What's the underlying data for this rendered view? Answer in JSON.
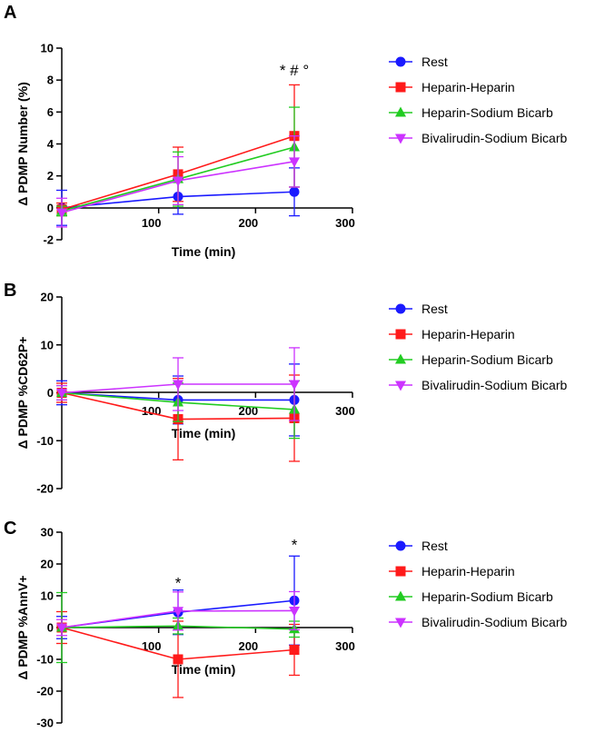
{
  "colors": {
    "rest": "#1a1aff",
    "heparin_heparin": "#ff1a1a",
    "heparin_sodium_bicarb": "#22cc22",
    "bivalirudin_sodium_bicarb": "#cc33ff"
  },
  "chart_data": [
    {
      "panel": "A",
      "type": "line",
      "xlabel": "Time (min)",
      "ylabel": "Δ PDMP Number (%)",
      "xlim": [
        0,
        300
      ],
      "ylim": [
        -2,
        10
      ],
      "xticks": [
        100,
        200,
        300
      ],
      "yticks": [
        -2,
        0,
        2,
        4,
        6,
        8,
        10
      ],
      "x": [
        0,
        120,
        240
      ],
      "series": [
        {
          "name": "Rest",
          "marker": "circle",
          "values": [
            0,
            0.7,
            1.0
          ],
          "errors": [
            1.1,
            1.1,
            1.5
          ]
        },
        {
          "name": "Heparin-Heparin",
          "marker": "square",
          "values": [
            -0.1,
            2.1,
            4.5
          ],
          "errors": [
            0.4,
            1.7,
            3.2
          ]
        },
        {
          "name": "Heparin-Sodium Bicarb",
          "marker": "triangle-up",
          "values": [
            -0.2,
            1.8,
            3.8
          ],
          "errors": [
            0.3,
            1.7,
            2.5
          ]
        },
        {
          "name": "Bivalirudin-Sodium Bicarb",
          "marker": "triangle-down",
          "values": [
            -0.3,
            1.7,
            2.9
          ],
          "errors": [
            0.9,
            1.5,
            1.6
          ]
        }
      ],
      "annotations": [
        {
          "text": "* # °",
          "x": 240,
          "y": 8.3
        }
      ],
      "legend": "right"
    },
    {
      "panel": "B",
      "type": "line",
      "xlabel": "Time (min)",
      "ylabel": "Δ PDMP %CD62P+",
      "xlim": [
        0,
        300
      ],
      "ylim": [
        -20,
        20
      ],
      "xticks": [
        100,
        200,
        300
      ],
      "yticks": [
        -20,
        -10,
        0,
        10,
        20
      ],
      "x": [
        0,
        120,
        240
      ],
      "series": [
        {
          "name": "Rest",
          "marker": "circle",
          "values": [
            0,
            -1.5,
            -1.5
          ],
          "errors": [
            2.5,
            5.0,
            7.5
          ]
        },
        {
          "name": "Heparin-Heparin",
          "marker": "square",
          "values": [
            0,
            -5.5,
            -5.3
          ],
          "errors": [
            2.0,
            8.5,
            9.0
          ]
        },
        {
          "name": "Heparin-Sodium Bicarb",
          "marker": "triangle-up",
          "values": [
            0,
            -2.0,
            -3.5
          ],
          "errors": [
            1.5,
            4.0,
            6.0
          ]
        },
        {
          "name": "Bivalirudin-Sodium Bicarb",
          "marker": "triangle-down",
          "values": [
            0,
            1.8,
            1.8
          ],
          "errors": [
            1.5,
            5.5,
            7.6
          ]
        }
      ],
      "annotations": [],
      "legend": "right"
    },
    {
      "panel": "C",
      "type": "line",
      "xlabel": "Time (min)",
      "ylabel": "Δ PDMP %AnnV+",
      "xlim": [
        0,
        300
      ],
      "ylim": [
        -30,
        30
      ],
      "xticks": [
        100,
        200,
        300
      ],
      "yticks": [
        -30,
        -20,
        -10,
        0,
        10,
        20,
        30
      ],
      "x": [
        0,
        120,
        240
      ],
      "series": [
        {
          "name": "Rest",
          "marker": "circle",
          "values": [
            0,
            4.8,
            8.5
          ],
          "errors": [
            3.5,
            7.0,
            14.0
          ]
        },
        {
          "name": "Heparin-Heparin",
          "marker": "square",
          "values": [
            0,
            -10.0,
            -7.0
          ],
          "errors": [
            5.0,
            12.0,
            8.0
          ]
        },
        {
          "name": "Heparin-Sodium Bicarb",
          "marker": "triangle-up",
          "values": [
            0,
            0.5,
            -0.5
          ],
          "errors": [
            11.0,
            2.5,
            2.5
          ]
        },
        {
          "name": "Bivalirudin-Sodium Bicarb",
          "marker": "triangle-down",
          "values": [
            0,
            5.2,
            5.3
          ],
          "errors": [
            2.5,
            6.0,
            6.0
          ]
        }
      ],
      "annotations": [
        {
          "text": "*",
          "x": 120,
          "y": 12.5
        },
        {
          "text": "*",
          "x": 240,
          "y": 24.5
        }
      ],
      "legend": "right"
    }
  ]
}
